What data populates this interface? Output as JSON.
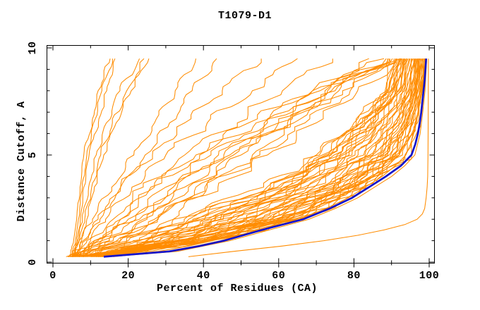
{
  "chart_data": {
    "type": "line",
    "title": "T1079-D1",
    "xlabel": "Percent of Residues (CA)",
    "ylabel": "Distance Cutoff, A",
    "xlim": [
      0,
      100
    ],
    "ylim": [
      0,
      10
    ],
    "x_tick_labels": [
      "0",
      "20",
      "40",
      "60",
      "80",
      "100"
    ],
    "x_ticks_major": [
      0,
      20,
      40,
      60,
      80,
      100
    ],
    "x_tick_minor_step": 10,
    "y_tick_labels": [
      "0",
      "5",
      "10"
    ],
    "y_ticks_major": [
      0,
      5,
      10
    ],
    "y_tick_minor_step": 1,
    "grid": false,
    "legend": false,
    "colors": {
      "models": "#FF8C00",
      "best_model": "#1414CC"
    },
    "y_levels": [
      0.25,
      1,
      2,
      3.5,
      5,
      6.5,
      8,
      9.5
    ],
    "series": [
      {
        "role": "model",
        "x": [
          4.5,
          5.5,
          6.3,
          7.2,
          8.2,
          10.4,
          12,
          15.2
        ]
      },
      {
        "role": "model",
        "x": [
          5,
          6,
          6.8,
          7.8,
          9,
          10.8,
          13,
          15.8
        ]
      },
      {
        "role": "model",
        "x": [
          5.4,
          6.4,
          7.3,
          8.2,
          9.6,
          12,
          14.3,
          16.5
        ]
      },
      {
        "role": "model",
        "x": [
          5.2,
          6.6,
          7.8,
          9.5,
          11.5,
          14.2,
          17.8,
          23
        ]
      },
      {
        "role": "model",
        "x": [
          5.6,
          7,
          8.4,
          10.3,
          12.7,
          15.8,
          19.6,
          24.2
        ]
      },
      {
        "role": "model",
        "x": [
          6,
          7.6,
          9,
          11,
          13.5,
          16.8,
          20.8,
          25.5
        ]
      },
      {
        "role": "model",
        "x": [
          5,
          7,
          10.5,
          15.5,
          21.5,
          27,
          32.5,
          38
        ]
      },
      {
        "role": "model",
        "x": [
          6,
          8.5,
          12.5,
          18,
          24.5,
          31,
          37,
          43.5
        ]
      },
      {
        "role": "model",
        "x": [
          5.5,
          8,
          12,
          18,
          26,
          35,
          45,
          55
        ]
      },
      {
        "role": "model",
        "x": [
          6,
          9,
          14,
          21,
          30,
          41,
          53,
          65
        ]
      },
      {
        "role": "model",
        "x": [
          6.5,
          10,
          16,
          24,
          35,
          48,
          61,
          74
        ]
      },
      {
        "role": "model",
        "x": [
          7,
          11,
          18,
          27,
          39,
          54,
          69,
          84
        ]
      },
      {
        "role": "model",
        "x": [
          3.5,
          13,
          18,
          26,
          38,
          52,
          69,
          88
        ]
      },
      {
        "role": "model",
        "x": [
          6,
          11,
          22,
          32,
          44,
          57,
          72,
          88.6
        ]
      },
      {
        "role": "model",
        "x": [
          4.5,
          17,
          24,
          33,
          45,
          60,
          74,
          89.2
        ]
      },
      {
        "role": "model",
        "x": [
          8,
          15,
          28,
          38,
          48,
          61,
          75,
          89.7
        ]
      },
      {
        "role": "model",
        "x": [
          5,
          20,
          27,
          41,
          53,
          64,
          77,
          90.2
        ]
      },
      {
        "role": "model",
        "x": [
          9,
          18,
          32,
          40,
          55,
          67,
          79,
          90.6
        ]
      },
      {
        "role": "model",
        "x": [
          4,
          15,
          25,
          36,
          50,
          62,
          76,
          89.5
        ]
      },
      {
        "role": "model",
        "x": [
          7,
          13,
          20,
          30,
          42,
          56,
          71,
          88.3
        ]
      },
      {
        "role": "model",
        "x": [
          5.5,
          16,
          27,
          43,
          57,
          70,
          81,
          92.4
        ]
      },
      {
        "role": "model",
        "x": [
          6,
          12,
          23,
          35,
          47,
          60,
          73,
          89
        ]
      },
      {
        "role": "model",
        "x": [
          10,
          23,
          32,
          56,
          70,
          80,
          88,
          91
        ]
      },
      {
        "role": "model",
        "x": [
          4,
          17.9,
          37,
          56.9,
          70.8,
          80.6,
          88.3,
          91.3
        ]
      },
      {
        "role": "model",
        "x": [
          11,
          24.7,
          34.1,
          57.8,
          71.6,
          81.1,
          88.7,
          91.5
        ]
      },
      {
        "role": "model",
        "x": [
          5,
          19.6,
          39.1,
          58.7,
          72.4,
          81.7,
          89,
          91.8
        ]
      },
      {
        "role": "model",
        "x": [
          12,
          26.5,
          36.1,
          59.6,
          73.2,
          82.3,
          89.3,
          92
        ]
      },
      {
        "role": "model",
        "x": [
          6,
          21.4,
          41.2,
          60.5,
          74,
          82.8,
          89.7,
          92.3
        ]
      },
      {
        "role": "model",
        "x": [
          13,
          28.2,
          38.2,
          61.4,
          74.7,
          83.4,
          90,
          92.6
        ]
      },
      {
        "role": "model",
        "x": [
          7,
          23.1,
          43.2,
          62.3,
          75.5,
          84,
          90.3,
          92.8
        ]
      },
      {
        "role": "model",
        "x": [
          8.5,
          25,
          42,
          62,
          73.5,
          83,
          90,
          92.5
        ]
      },
      {
        "role": "model",
        "x": [
          14,
          30,
          40.3,
          63.2,
          76.3,
          84.5,
          90.7,
          93.1
        ]
      },
      {
        "role": "model",
        "x": [
          8,
          24.9,
          45.3,
          64.1,
          77.1,
          85.1,
          91,
          93.4
        ]
      },
      {
        "role": "model",
        "x": [
          13.2,
          29,
          44.5,
          64.5,
          76.5,
          85.3,
          91.2,
          93.3
        ]
      },
      {
        "role": "model",
        "x": [
          15,
          31.7,
          42.3,
          65,
          77.9,
          85.6,
          91.4,
          93.6
        ]
      },
      {
        "role": "model",
        "x": [
          9,
          26.6,
          47.4,
          65.9,
          78.7,
          86.2,
          91.7,
          93.9
        ]
      },
      {
        "role": "model",
        "x": [
          16,
          33.5,
          44.4,
          66.8,
          79.5,
          86.8,
          92,
          94.1
        ]
      },
      {
        "role": "model",
        "x": [
          10.5,
          28.4,
          49.4,
          67.7,
          80.3,
          87.3,
          92.4,
          94.4
        ]
      },
      {
        "role": "model",
        "x": [
          4.5,
          35.2,
          46.5,
          68.6,
          81.1,
          87.9,
          92.7,
          94.7
        ]
      },
      {
        "role": "model",
        "x": [
          11.5,
          30.1,
          51.5,
          69.5,
          81.9,
          88.5,
          93,
          94.9
        ]
      },
      {
        "role": "model",
        "x": [
          5.5,
          36.9,
          48.5,
          70.4,
          82.6,
          89,
          93.4,
          95.2
        ]
      },
      {
        "role": "model",
        "x": [
          12.5,
          31.8,
          53.5,
          71.3,
          83.4,
          89.6,
          93.7,
          95.4
        ]
      },
      {
        "role": "model",
        "x": [
          6.5,
          38.7,
          50.6,
          72.3,
          84.2,
          90.2,
          94,
          95.7
        ]
      },
      {
        "role": "model",
        "x": [
          13.5,
          33.6,
          55.6,
          73.2,
          85,
          90.7,
          94.4,
          96
        ]
      },
      {
        "role": "model",
        "x": [
          7.5,
          40.4,
          52.6,
          74.1,
          85.8,
          91.3,
          94.7,
          96.2
        ]
      },
      {
        "role": "model",
        "x": [
          14.5,
          35.3,
          57.7,
          75,
          86.6,
          91.9,
          95,
          96.5
        ]
      },
      {
        "role": "model",
        "x": [
          8.5,
          42,
          54.7,
          75.9,
          87.4,
          92.4,
          95.4,
          96.7
        ]
      },
      {
        "role": "model",
        "x": [
          15.5,
          37,
          59.7,
          76.8,
          88.2,
          93,
          95.7,
          97
        ]
      },
      {
        "role": "model",
        "x": [
          9.5,
          41,
          56.8,
          77.7,
          89,
          93.5,
          96.1,
          97.3
        ]
      },
      {
        "role": "model",
        "x": [
          16,
          38.8,
          61.8,
          78.6,
          89.8,
          94.1,
          96.4,
          97.5
        ]
      },
      {
        "role": "model",
        "x": [
          5,
          42,
          58.8,
          79.5,
          90.5,
          94.7,
          96.7,
          97.8
        ]
      },
      {
        "role": "model",
        "x": [
          12,
          40.5,
          63.9,
          80.4,
          91.3,
          95.2,
          97.1,
          98
        ]
      },
      {
        "role": "model",
        "x": [
          6.5,
          40.5,
          60.9,
          81.3,
          92.1,
          95.8,
          97.4,
          98.3
        ]
      },
      {
        "role": "model",
        "x": [
          13,
          42.3,
          65.9,
          82.2,
          92.9,
          96.4,
          97.7,
          98.6
        ]
      },
      {
        "role": "model",
        "x": [
          8,
          41.5,
          63,
          83.1,
          93.7,
          96.9,
          98.1,
          98.8
        ]
      },
      {
        "role": "model",
        "x": [
          15,
          42,
          66,
          84,
          94.5,
          97.5,
          98.4,
          99.1
        ]
      },
      {
        "role": "model",
        "x": [
          11,
          36,
          62,
          80,
          92,
          96.6,
          97.9,
          98.9
        ]
      },
      {
        "role": "model",
        "x": [
          9,
          33,
          59,
          78.5,
          91,
          95.5,
          97.6,
          98.5
        ]
      },
      {
        "role": "model",
        "x": [
          14,
          41,
          64.5,
          82.5,
          93.5,
          96.2,
          98.2,
          99
        ]
      },
      {
        "role": "model",
        "x": [
          10,
          34,
          57,
          74,
          86.5,
          92.5,
          95.2,
          96.4
        ]
      },
      {
        "role": "model",
        "x": [
          12.5,
          38,
          60,
          77,
          88.5,
          93.8,
          96.2,
          97.2
        ]
      },
      {
        "role": "model",
        "x": [
          7,
          30,
          54,
          72,
          85,
          91.5,
          94.5,
          95.9
        ]
      },
      {
        "role": "model",
        "x": [
          13.5,
          40,
          62.5,
          79.5,
          90.2,
          94.4,
          96.6,
          97.7
        ]
      },
      {
        "role": "model",
        "x": [
          9.5,
          35,
          58.5,
          76,
          87.8,
          93.2,
          95.8,
          96.9
        ]
      },
      {
        "role": "model",
        "x": [
          11.5,
          37,
          61,
          78.3,
          89.4,
          94,
          96.3,
          97.4
        ]
      },
      {
        "role": "model",
        "j": 0,
        "y": [
          0.25,
          0.5,
          0.75,
          1,
          1.5,
          2,
          2.5,
          3,
          3.5,
          4,
          4.5,
          5,
          5.5,
          6,
          6.5,
          7,
          7.5,
          8,
          8.5,
          9,
          9.5
        ],
        "x": [
          12,
          28,
          36,
          42.5,
          52,
          63,
          70,
          76,
          80.5,
          85,
          89,
          92,
          93.5,
          94.5,
          95.3,
          95.9,
          96.4,
          96.9,
          97.4,
          97.8,
          98.2
        ]
      },
      {
        "role": "model",
        "j": 0,
        "y": [
          0.25,
          0.5,
          0.75,
          1,
          1.5,
          2,
          2.5,
          3,
          3.5,
          4,
          4.5,
          5,
          5.5,
          6,
          6.5,
          7,
          7.5,
          8,
          8.5,
          9,
          9.5
        ],
        "x": [
          13,
          30,
          38,
          44.5,
          54.5,
          65.5,
          72.5,
          78.5,
          83,
          87.5,
          91,
          93.8,
          95,
          95.9,
          96.6,
          97.1,
          97.5,
          97.9,
          98.3,
          98.6,
          98.9
        ]
      },
      {
        "role": "model",
        "j": 0,
        "y": [
          0.25,
          0.5,
          1,
          1.5,
          2,
          2.5,
          3,
          3.5,
          4,
          4.5,
          5,
          6,
          7,
          8,
          9.5
        ],
        "x": [
          15,
          33,
          47,
          57.5,
          68,
          75,
          81,
          85.5,
          90,
          93.5,
          96.2,
          97.6,
          98.3,
          98.9,
          99.35
        ]
      },
      {
        "role": "model",
        "j": 0,
        "y": [
          0.25,
          0.5,
          0.75,
          1,
          1.25,
          1.5,
          1.75,
          2,
          2.25,
          2.5,
          3,
          3.5,
          4,
          5,
          6,
          7.5,
          9.5
        ],
        "x": [
          36,
          48,
          61,
          72,
          81,
          88,
          93.5,
          96.8,
          98.2,
          98.8,
          99.2,
          99.45,
          99.6,
          99.68,
          99.72,
          99.76,
          99.8
        ]
      },
      {
        "role": "best",
        "j": 0,
        "y": [
          0.25,
          0.5,
          0.75,
          1,
          1.5,
          2,
          2.5,
          3,
          3.5,
          4,
          4.5,
          5,
          5.5,
          6,
          6.5,
          7,
          7.5,
          8,
          8.5,
          9,
          9.5
        ],
        "x": [
          13.5,
          31,
          39,
          45.5,
          55.5,
          66.5,
          73.5,
          79.5,
          84,
          88.5,
          92.5,
          95.3,
          96.3,
          97,
          97.5,
          97.9,
          98.2,
          98.5,
          98.8,
          99,
          99.2
        ]
      }
    ]
  }
}
